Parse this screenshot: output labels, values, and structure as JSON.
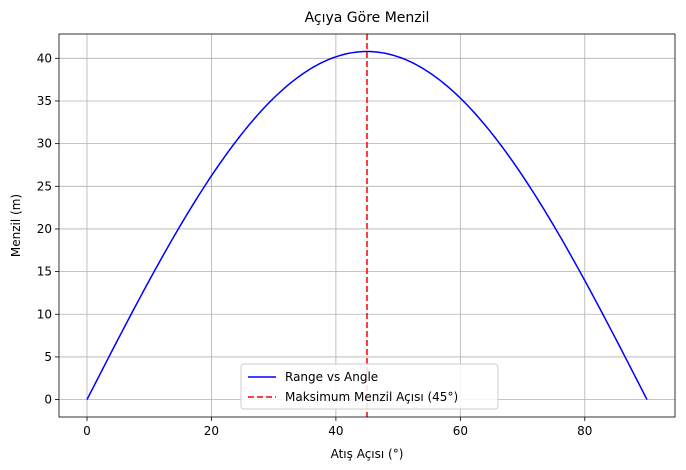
{
  "chart_data": {
    "type": "line",
    "title": "Açıya Göre Menzil",
    "xlabel": "Atış Açısı (°)",
    "ylabel": "Menzil (m)",
    "xlim": [
      -4.5,
      94.5
    ],
    "ylim": [
      -2.04,
      42.85
    ],
    "xticks": [
      0,
      20,
      40,
      60,
      80
    ],
    "yticks": [
      0,
      5,
      10,
      15,
      20,
      25,
      30,
      35,
      40
    ],
    "grid": true,
    "legend_position": "bottom-center",
    "series": [
      {
        "name": "Range vs Angle",
        "color": "#0000ff",
        "style": "solid",
        "function": "R_max * sin(2*theta)",
        "r_max": 40.8,
        "x_range": [
          0,
          90
        ]
      },
      {
        "name": "Maksimum Menzil Açısı (45°)",
        "color": "#ff0000",
        "style": "dashed",
        "vertical_line_x": 45
      }
    ]
  }
}
